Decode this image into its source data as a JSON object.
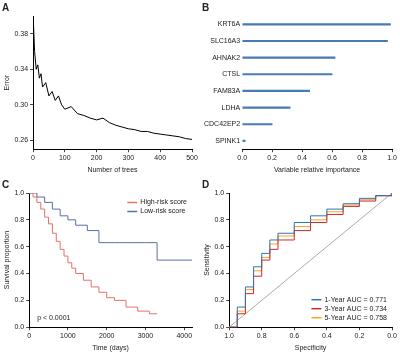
{
  "chart_data": [
    {
      "type": "line",
      "title": "A",
      "xlabel": "Number of trees",
      "ylabel": "Error",
      "x": [
        1,
        5,
        10,
        15,
        20,
        25,
        30,
        40,
        50,
        60,
        70,
        80,
        90,
        100,
        120,
        140,
        160,
        180,
        200,
        220,
        240,
        260,
        280,
        300,
        320,
        340,
        360,
        380,
        400,
        420,
        440,
        460,
        480,
        500
      ],
      "values": [
        0.395,
        0.36,
        0.34,
        0.345,
        0.33,
        0.335,
        0.32,
        0.325,
        0.31,
        0.315,
        0.305,
        0.31,
        0.3,
        0.295,
        0.298,
        0.29,
        0.288,
        0.285,
        0.283,
        0.285,
        0.28,
        0.277,
        0.275,
        0.273,
        0.272,
        0.27,
        0.27,
        0.268,
        0.267,
        0.266,
        0.265,
        0.264,
        0.262,
        0.261
      ],
      "color": "#000000",
      "marker": "none",
      "line_style": "solid",
      "xlim": [
        0,
        500
      ],
      "xticks": [
        0,
        100,
        200,
        300,
        400,
        500
      ],
      "ylim": [
        0.25,
        0.4
      ],
      "yticks": [
        0.26,
        {
          "value": 0.3,
          "label": "0.30"
        },
        0.34,
        0.38
      ],
      "grid": false
    },
    {
      "type": "bar",
      "title": "B",
      "orientation": "horizontal",
      "xlabel": "Variable relative importance",
      "categories": [
        "KRT6A",
        "SLC16A3",
        "AHNAK2",
        "CTSL",
        "FAM83A",
        "LDHA",
        "CDC42EP2",
        "SPINK1"
      ],
      "values": [
        0.99,
        0.97,
        0.62,
        0.6,
        0.45,
        0.32,
        0.2,
        0.02
      ],
      "color": "#4a7ab5",
      "xlim": [
        0,
        1
      ],
      "xticks": [
        {
          "value": 0,
          "label": "0.0"
        },
        0.2,
        0.4,
        0.6,
        0.8,
        {
          "value": 1,
          "label": "1.0"
        }
      ],
      "grid": false
    },
    {
      "type": "line",
      "title": "C",
      "xlabel": "Time (days)",
      "ylabel": "Survival proportion",
      "series": [
        {
          "name": "High-risk score",
          "color": "#e8706a",
          "line_style": "step",
          "marker": "none",
          "x": [
            0,
            100,
            200,
            300,
            400,
            500,
            600,
            700,
            800,
            900,
            1000,
            1100,
            1200,
            1400,
            1600,
            1800,
            2000,
            2200,
            2500,
            2800,
            3100,
            3300
          ],
          "values": [
            1,
            0.97,
            0.93,
            0.88,
            0.82,
            0.77,
            0.7,
            0.64,
            0.58,
            0.53,
            0.48,
            0.44,
            0.4,
            0.35,
            0.3,
            0.26,
            0.22,
            0.2,
            0.15,
            0.12,
            0.1,
            0.1
          ]
        },
        {
          "name": "Low-risk score",
          "color": "#5a6fa5",
          "line_style": "step",
          "marker": "none",
          "x": [
            0,
            200,
            400,
            600,
            800,
            1000,
            1200,
            1500,
            1800,
            2200,
            2600,
            3000,
            3300,
            4200
          ],
          "values": [
            1,
            0.97,
            0.93,
            0.88,
            0.83,
            0.8,
            0.76,
            0.72,
            0.63,
            0.63,
            0.63,
            0.63,
            0.5,
            0.5
          ]
        }
      ],
      "annotation": "p < 0.0001",
      "legend": "upper right",
      "xlim": [
        0,
        4200
      ],
      "xticks": [
        0,
        1000,
        2000,
        3000,
        4000
      ],
      "ylim": [
        0,
        1
      ],
      "yticks": [
        {
          "value": 0,
          "label": "0.0"
        },
        0.2,
        0.4,
        0.6,
        0.8,
        {
          "value": 1,
          "label": "1.0"
        }
      ],
      "grid": false
    },
    {
      "type": "line",
      "title": "D",
      "xlabel": "Specificity",
      "ylabel": "Sensitivity",
      "series": [
        {
          "name": "1-Year AUC = 0.771",
          "color": "#2e75b6",
          "line_style": "step",
          "marker": "none",
          "x": [
            1,
            0.95,
            0.9,
            0.85,
            0.8,
            0.75,
            0.7,
            0.6,
            0.5,
            0.4,
            0.3,
            0.2,
            0.1,
            0
          ],
          "values": [
            0,
            0.15,
            0.3,
            0.45,
            0.55,
            0.65,
            0.7,
            0.78,
            0.83,
            0.88,
            0.92,
            0.96,
            0.98,
            1
          ]
        },
        {
          "name": "3-Year AUC = 0.734",
          "color": "#d62728",
          "line_style": "step",
          "marker": "none",
          "x": [
            1,
            0.95,
            0.9,
            0.85,
            0.8,
            0.75,
            0.7,
            0.6,
            0.5,
            0.4,
            0.3,
            0.2,
            0.1,
            0
          ],
          "values": [
            0,
            0.1,
            0.25,
            0.38,
            0.5,
            0.58,
            0.65,
            0.72,
            0.78,
            0.84,
            0.9,
            0.94,
            0.98,
            1
          ]
        },
        {
          "name": "5-Year AUC = 0.758",
          "color": "#f5a623",
          "line_style": "step",
          "marker": "none",
          "x": [
            1,
            0.95,
            0.9,
            0.85,
            0.8,
            0.75,
            0.7,
            0.6,
            0.5,
            0.4,
            0.3,
            0.2,
            0.1,
            0
          ],
          "values": [
            0,
            0.12,
            0.28,
            0.42,
            0.52,
            0.62,
            0.68,
            0.75,
            0.8,
            0.86,
            0.91,
            0.95,
            0.98,
            1
          ]
        }
      ],
      "legend": "lower right",
      "xlim": [
        1,
        0
      ],
      "xticks": [
        {
          "value": 1,
          "label": "1.0"
        },
        0.8,
        0.6,
        0.4,
        0.2,
        {
          "value": 0,
          "label": "0.0"
        }
      ],
      "ylim": [
        0,
        1
      ],
      "yticks": [
        {
          "value": 0,
          "label": "0.0"
        },
        0.2,
        0.4,
        0.6,
        0.8,
        {
          "value": 1,
          "label": "1.0"
        }
      ],
      "grid": false
    }
  ]
}
